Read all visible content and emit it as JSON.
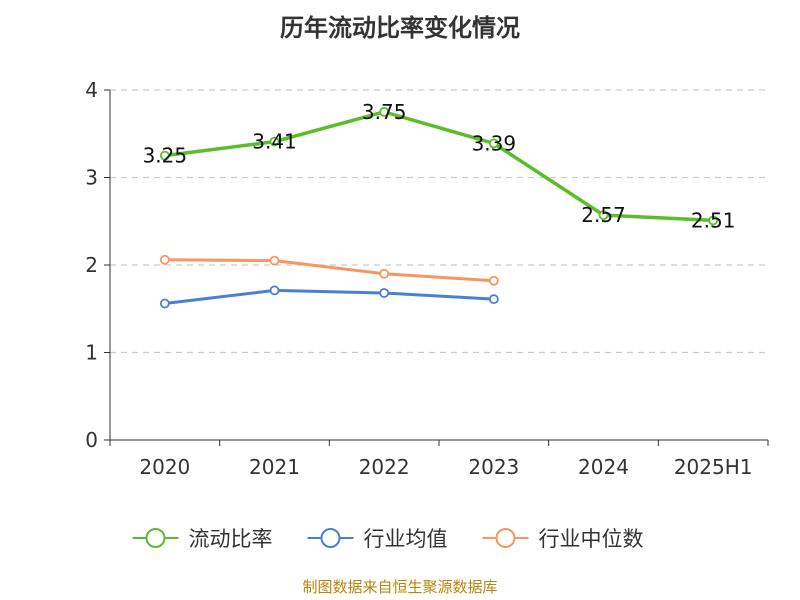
{
  "chart_data": {
    "type": "line",
    "title": "历年流动比率变化情况",
    "categories": [
      "2020",
      "2021",
      "2022",
      "2023",
      "2024",
      "2025H1"
    ],
    "yticks": [
      "0",
      "1",
      "2",
      "3",
      "4"
    ],
    "ylim": [
      0,
      4
    ],
    "grid": "horizontal-dashed",
    "legend_position": "bottom",
    "series": [
      {
        "name": "流动比率",
        "color": "#5cbd2b",
        "values": [
          3.25,
          3.41,
          3.75,
          3.39,
          2.57,
          2.51
        ],
        "labels": [
          "3.25",
          "3.41",
          "3.75",
          "3.39",
          "2.57",
          "2.51"
        ]
      },
      {
        "name": "行业均值",
        "color": "#4a7fd8",
        "values": [
          1.56,
          1.71,
          1.68,
          1.61,
          null,
          null
        ]
      },
      {
        "name": "行业中位数",
        "color": "#f7965f",
        "values": [
          2.06,
          2.05,
          1.9,
          1.82,
          null,
          null
        ]
      }
    ]
  },
  "source_note": "制图数据来自恒生聚源数据库"
}
